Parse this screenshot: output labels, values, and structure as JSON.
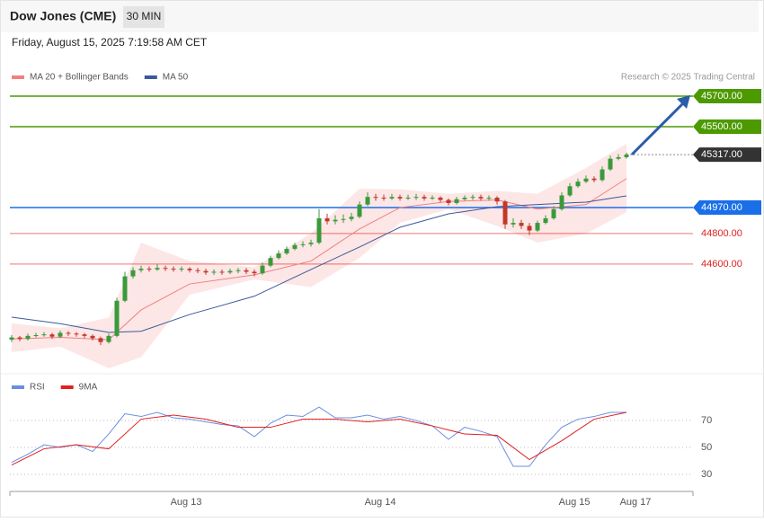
{
  "header": {
    "title": "Dow Jones (CME)",
    "timeframe": "30 MIN",
    "timestamp": "Friday, August 15, 2025 7:19:58 AM CET"
  },
  "chart_data": [
    {
      "type": "candlestick",
      "source": "Research © 2025 Trading Central",
      "up_color": "#3a9a3a",
      "down_color": "#c0392b",
      "xlim": [
        -0.22,
        84.22
      ],
      "ylim": [
        43888,
        45788
      ],
      "x": [
        0,
        1,
        2,
        3,
        4,
        5,
        6,
        7,
        8,
        9,
        10,
        11,
        12,
        13,
        14,
        15,
        16,
        17,
        18,
        19,
        20,
        21,
        22,
        23,
        24,
        25,
        26,
        27,
        28,
        29,
        30,
        31,
        32,
        33,
        34,
        35,
        36,
        37,
        38,
        39,
        40,
        41,
        42,
        43,
        44,
        45,
        46,
        47,
        48,
        49,
        50,
        51,
        52,
        53,
        54,
        55,
        56,
        57,
        58,
        59,
        60,
        61,
        62,
        63,
        64,
        65,
        66,
        67,
        68,
        69,
        70,
        71,
        72,
        73,
        74,
        75,
        76
      ],
      "open": [
        44105,
        44120,
        44110,
        44130,
        44135,
        44140,
        44125,
        44150,
        44145,
        44140,
        44130,
        44115,
        44090,
        44130,
        44360,
        44520,
        44560,
        44570,
        44565,
        44575,
        44570,
        44565,
        44570,
        44560,
        44555,
        44545,
        44550,
        44545,
        44555,
        44560,
        44550,
        44540,
        44590,
        44640,
        44670,
        44700,
        44725,
        44730,
        44740,
        44900,
        44880,
        44890,
        44895,
        44910,
        44990,
        45040,
        45035,
        45030,
        45040,
        45030,
        45035,
        45040,
        45030,
        45035,
        45020,
        45000,
        45025,
        45035,
        45040,
        45030,
        45035,
        45010,
        44860,
        44870,
        44850,
        44820,
        44870,
        44900,
        44960,
        45050,
        45110,
        45140,
        45160,
        45150,
        45220,
        45290,
        45300
      ],
      "high": [
        44135,
        44130,
        44145,
        44150,
        44155,
        44150,
        44165,
        44160,
        44155,
        44150,
        44140,
        44125,
        44145,
        44380,
        44550,
        44580,
        44590,
        44585,
        44600,
        44590,
        44585,
        44585,
        44580,
        44575,
        44570,
        44565,
        44565,
        44570,
        44575,
        44575,
        44565,
        44610,
        44655,
        44690,
        44715,
        44740,
        44750,
        44760,
        44960,
        44930,
        44920,
        44925,
        44935,
        45010,
        45070,
        45060,
        45055,
        45060,
        45055,
        45055,
        45060,
        45055,
        45050,
        45045,
        45030,
        45040,
        45050,
        45055,
        45055,
        45050,
        45045,
        45020,
        44900,
        44890,
        44870,
        44885,
        44920,
        44980,
        45070,
        45130,
        45160,
        45180,
        45175,
        45240,
        45310,
        45320,
        45330
      ],
      "low": [
        44090,
        44095,
        44100,
        44120,
        44125,
        44110,
        44115,
        44130,
        44125,
        44115,
        44100,
        44070,
        44080,
        44120,
        44350,
        44505,
        44545,
        44550,
        44555,
        44555,
        44550,
        44550,
        44545,
        44540,
        44530,
        44530,
        44530,
        44535,
        44540,
        44535,
        44520,
        44530,
        44580,
        44630,
        44660,
        44690,
        44710,
        44715,
        44730,
        44860,
        44860,
        44870,
        44880,
        44900,
        44980,
        45015,
        45015,
        45020,
        45015,
        45020,
        45020,
        45015,
        45020,
        45005,
        44985,
        44990,
        45015,
        45020,
        45015,
        45015,
        44990,
        44830,
        44840,
        44830,
        44790,
        44810,
        44860,
        44890,
        44950,
        45040,
        45100,
        45130,
        45135,
        45140,
        45210,
        45280,
        45290
      ],
      "close": [
        44120,
        44110,
        44130,
        44135,
        44140,
        44125,
        44150,
        44145,
        44140,
        44130,
        44115,
        44090,
        44130,
        44360,
        44520,
        44560,
        44570,
        44565,
        44575,
        44570,
        44565,
        44570,
        44560,
        44555,
        44545,
        44550,
        44545,
        44555,
        44560,
        44550,
        44540,
        44590,
        44640,
        44670,
        44700,
        44725,
        44730,
        44740,
        44900,
        44880,
        44890,
        44895,
        44910,
        44990,
        45040,
        45035,
        45030,
        45040,
        45030,
        45035,
        45040,
        45030,
        45035,
        45020,
        45000,
        45025,
        45035,
        45040,
        45030,
        45035,
        45010,
        44860,
        44870,
        44850,
        44820,
        44870,
        44900,
        44960,
        45050,
        45110,
        45140,
        45160,
        45150,
        45220,
        45290,
        45300,
        45317
      ],
      "series": [
        {
          "name": "MA 20 + Bollinger Bands",
          "color": "#f08080",
          "band_color": "#fde0e0",
          "x": [
            0,
            6,
            12,
            16,
            22,
            30,
            37,
            43,
            48,
            54,
            60,
            65,
            71,
            76
          ],
          "values": [
            44110,
            44120,
            44105,
            44300,
            44470,
            44530,
            44620,
            44830,
            44970,
            45010,
            45020,
            44960,
            44990,
            45160
          ],
          "upper": [
            44212,
            44180,
            44250,
            44740,
            44620,
            44580,
            44800,
            45094,
            45090,
            45060,
            45080,
            45060,
            45230,
            45388
          ],
          "lower": [
            44024,
            44060,
            43918,
            43990,
            44400,
            44500,
            44450,
            44640,
            44870,
            44960,
            44850,
            44741,
            44800,
            44940
          ]
        },
        {
          "name": "MA 50",
          "color": "#3a5a9a",
          "x": [
            0,
            6,
            12,
            16,
            22,
            30,
            37,
            43,
            48,
            54,
            60,
            65,
            71,
            76
          ],
          "values": [
            44253,
            44210,
            44153,
            44160,
            44270,
            44390,
            44565,
            44712,
            44841,
            44929,
            44976,
            44990,
            45006,
            45047
          ]
        }
      ],
      "levels": [
        {
          "value": 45700,
          "label": "45700.00",
          "color": "#4c9a00",
          "boxed": true
        },
        {
          "value": 45500,
          "label": "45500.00",
          "color": "#4c9a00",
          "boxed": true
        },
        {
          "value": 45317,
          "label": "45317.00",
          "color": "#333333",
          "boxed": true,
          "dotted": true
        },
        {
          "value": 44970,
          "label": "44970.00",
          "color": "#1a6fe8",
          "boxed": true
        },
        {
          "value": 44800,
          "label": "44800.00",
          "color": "#e02020",
          "boxed": false
        },
        {
          "value": 44600,
          "label": "44600.00",
          "color": "#e02020",
          "boxed": false
        }
      ]
    },
    {
      "type": "line",
      "xlim": [
        -0.22,
        84.22
      ],
      "ylim": [
        18.7,
        88.7
      ],
      "yticks": [
        70,
        50,
        30
      ],
      "xticks": [
        {
          "value": 21.56,
          "label": "Aug 13"
        },
        {
          "value": 45.56,
          "label": "Aug 14"
        },
        {
          "value": 69.56,
          "label": "Aug 15"
        },
        {
          "value": 77.11,
          "label": "Aug 17"
        }
      ],
      "series": [
        {
          "name": "RSI",
          "color": "#6a8ee0",
          "x": [
            0,
            2,
            4,
            6,
            8,
            10,
            12,
            14,
            16,
            18,
            20,
            22,
            24,
            26,
            28,
            30,
            32,
            34,
            36,
            38,
            40,
            42,
            44,
            46,
            48,
            50,
            52,
            54,
            56,
            58,
            60,
            62,
            64,
            66,
            68,
            70,
            72,
            74,
            76
          ],
          "values": [
            39,
            45,
            52,
            50,
            52,
            47,
            60,
            75,
            73,
            76,
            72,
            71,
            69,
            67,
            66,
            58,
            68,
            74,
            73,
            80,
            72,
            72,
            74,
            71,
            73,
            70,
            66,
            56,
            65,
            62,
            58,
            36,
            36,
            52,
            65,
            71,
            73,
            76,
            76
          ]
        },
        {
          "name": "9MA",
          "color": "#e02020",
          "x": [
            0,
            4,
            8,
            12,
            16,
            20,
            24,
            28,
            32,
            36,
            40,
            44,
            48,
            52,
            56,
            60,
            64,
            68,
            72,
            76
          ],
          "values": [
            37,
            49,
            52,
            49,
            71,
            74,
            71,
            65,
            65,
            71,
            71,
            69,
            71,
            66,
            60,
            59,
            41,
            55,
            71,
            76
          ]
        }
      ]
    }
  ]
}
